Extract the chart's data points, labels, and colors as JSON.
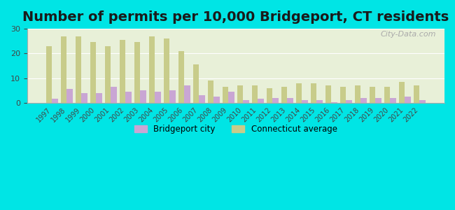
{
  "title": "Number of permits per 10,000 Bridgeport, CT residents",
  "years": [
    1997,
    1998,
    1999,
    2000,
    2001,
    2002,
    2003,
    2004,
    2005,
    2006,
    2007,
    2008,
    2009,
    2010,
    2011,
    2012,
    2013,
    2014,
    2015,
    2016,
    2017,
    2018,
    2019,
    2020,
    2021,
    2022
  ],
  "bridgeport": [
    1.5,
    5.5,
    4.0,
    4.0,
    6.5,
    4.5,
    5.0,
    4.5,
    5.0,
    7.0,
    3.0,
    2.5,
    4.5,
    1.0,
    1.5,
    2.0,
    2.0,
    1.0,
    1.0,
    0.3,
    1.0,
    2.0,
    2.0,
    2.0,
    2.5,
    1.0
  ],
  "connecticut": [
    23.0,
    27.0,
    27.0,
    24.5,
    23.0,
    25.5,
    24.5,
    27.0,
    26.0,
    21.0,
    15.5,
    9.0,
    6.5,
    7.0,
    7.0,
    6.0,
    6.5,
    8.0,
    8.0,
    7.0,
    6.5,
    7.0,
    6.5,
    6.5,
    8.5,
    7.0
  ],
  "bridgeport_color": "#c9a6d4",
  "connecticut_color": "#c8cc8a",
  "background_color": "#00e5e5",
  "plot_bg_color_top": "#e8f0d8",
  "plot_bg_color_bottom": "#d0ede8",
  "ylim": [
    0,
    30
  ],
  "yticks": [
    0,
    10,
    20,
    30
  ],
  "title_fontsize": 14,
  "bar_width": 0.4,
  "legend_bridgeport": "Bridgeport city",
  "legend_connecticut": "Connecticut average"
}
